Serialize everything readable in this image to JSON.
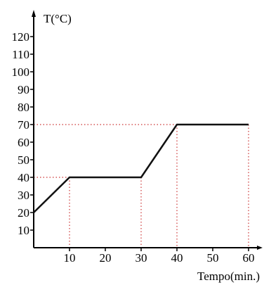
{
  "chart_data": {
    "type": "line",
    "title": "",
    "xlabel": "Tempo(min.)",
    "ylabel": "T(°C)",
    "xlim": [
      0,
      65
    ],
    "ylim": [
      0,
      125
    ],
    "x_ticks": [
      10,
      20,
      30,
      40,
      50,
      60
    ],
    "y_ticks": [
      10,
      20,
      30,
      40,
      50,
      60,
      70,
      80,
      90,
      100,
      110,
      120
    ],
    "grid": false,
    "series": [
      {
        "x": [
          0,
          10,
          30,
          40,
          60
        ],
        "y": [
          20,
          40,
          40,
          70,
          70
        ]
      }
    ],
    "guides": [
      {
        "x": 10,
        "y": 40
      },
      {
        "x": 30,
        "y": 40
      },
      {
        "x": 40,
        "y": 70
      },
      {
        "x": 60,
        "y": 70
      }
    ],
    "colors": {
      "line": "#111111",
      "guide": "#cc3333",
      "axis": "#000000"
    }
  }
}
